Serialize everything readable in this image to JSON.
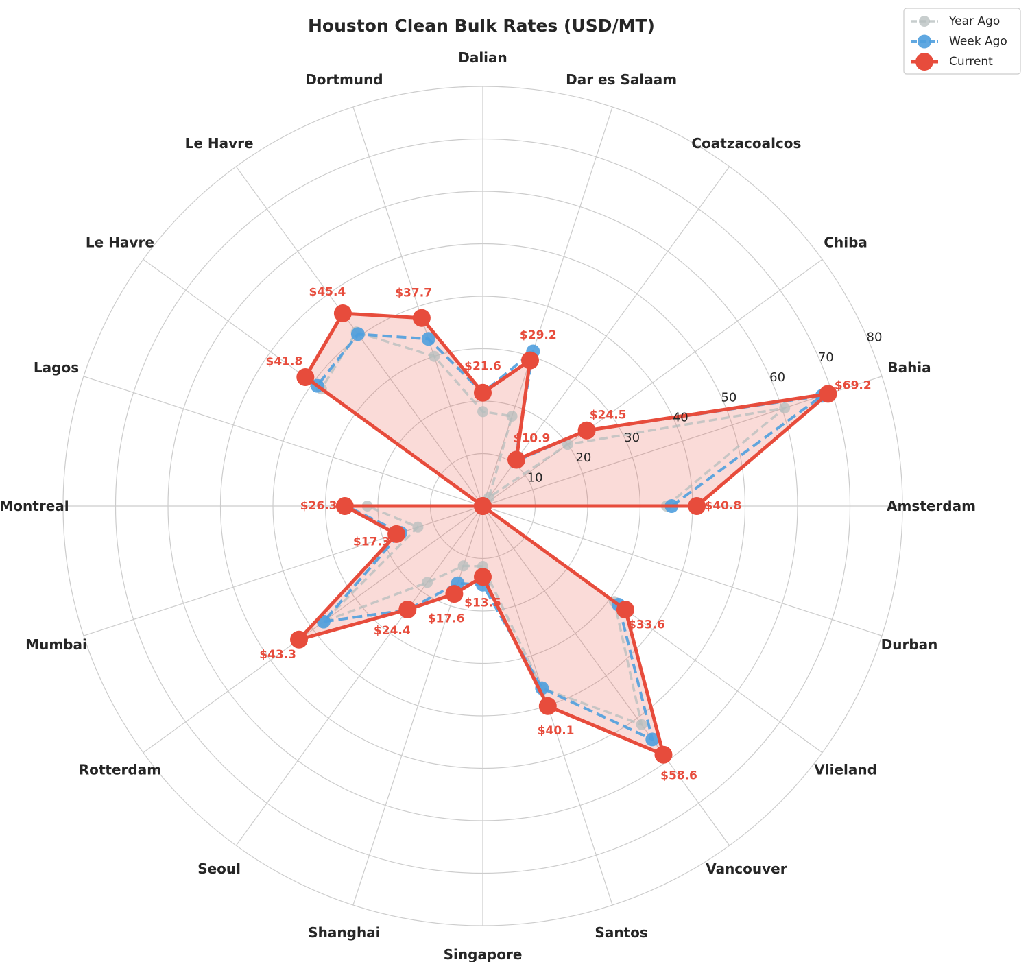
{
  "chart_data": {
    "type": "radar",
    "title": "Houston Clean Bulk Rates (USD/MT)",
    "categories": [
      "Amsterdam",
      "Bahia",
      "Chiba",
      "Coatzacoalcos",
      "Dar es Salaam",
      "Dalian",
      "Dortmund",
      "Le Havre",
      "Le Havre",
      "Lagos",
      "Montreal",
      "Mumbai",
      "Rotterdam",
      "Seoul",
      "Shanghai",
      "Singapore",
      "Santos",
      "Vancouver",
      "Vlieland",
      "Durban"
    ],
    "rlim": [
      0,
      80
    ],
    "rticks": [
      10,
      20,
      30,
      40,
      50,
      60,
      70,
      80
    ],
    "rtick_labels": [
      "10",
      "20",
      "30",
      "40",
      "50",
      "60",
      "70",
      "80"
    ],
    "grid": true,
    "legend_position": "top-right",
    "series": [
      {
        "name": "Year Ago",
        "color": "#b5bdbd",
        "line_style": "dashed",
        "values": [
          35.0,
          60.5,
          20.0,
          2.0,
          18.0,
          18.0,
          30.0,
          41.0,
          38.0,
          0.0,
          22.0,
          13.0,
          37.5,
          18.0,
          12.0,
          11.5,
          36.5,
          51.5,
          31.0,
          0.0
        ]
      },
      {
        "name": "Week Ago",
        "color": "#4f9fde",
        "line_style": "dashed",
        "values": [
          36.0,
          68.0,
          24.5,
          10.5,
          31.0,
          21.6,
          33.5,
          40.5,
          39.0,
          0.0,
          26.0,
          16.5,
          37.5,
          24.5,
          15.5,
          15.0,
          36.5,
          55.0,
          32.0,
          0.0
        ]
      },
      {
        "name": "Current",
        "color": "#e74c3c",
        "line_style": "solid",
        "values": [
          40.8,
          69.2,
          24.5,
          10.9,
          29.2,
          21.6,
          37.7,
          45.4,
          41.8,
          0.0,
          26.3,
          17.3,
          43.3,
          24.4,
          17.6,
          13.5,
          40.1,
          58.6,
          33.6,
          0.0
        ]
      }
    ],
    "data_labels": [
      "$40.8",
      "$69.2",
      "$24.5",
      "$10.9",
      "$29.2",
      "$21.6",
      "$37.7",
      "$45.4",
      "$41.8",
      "",
      "$26.3",
      "$17.3",
      "$43.3",
      "$24.4",
      "$17.6",
      "$13.5",
      "$40.1",
      "$58.6",
      "$33.6",
      ""
    ],
    "fill_color": "#e74c3c"
  }
}
